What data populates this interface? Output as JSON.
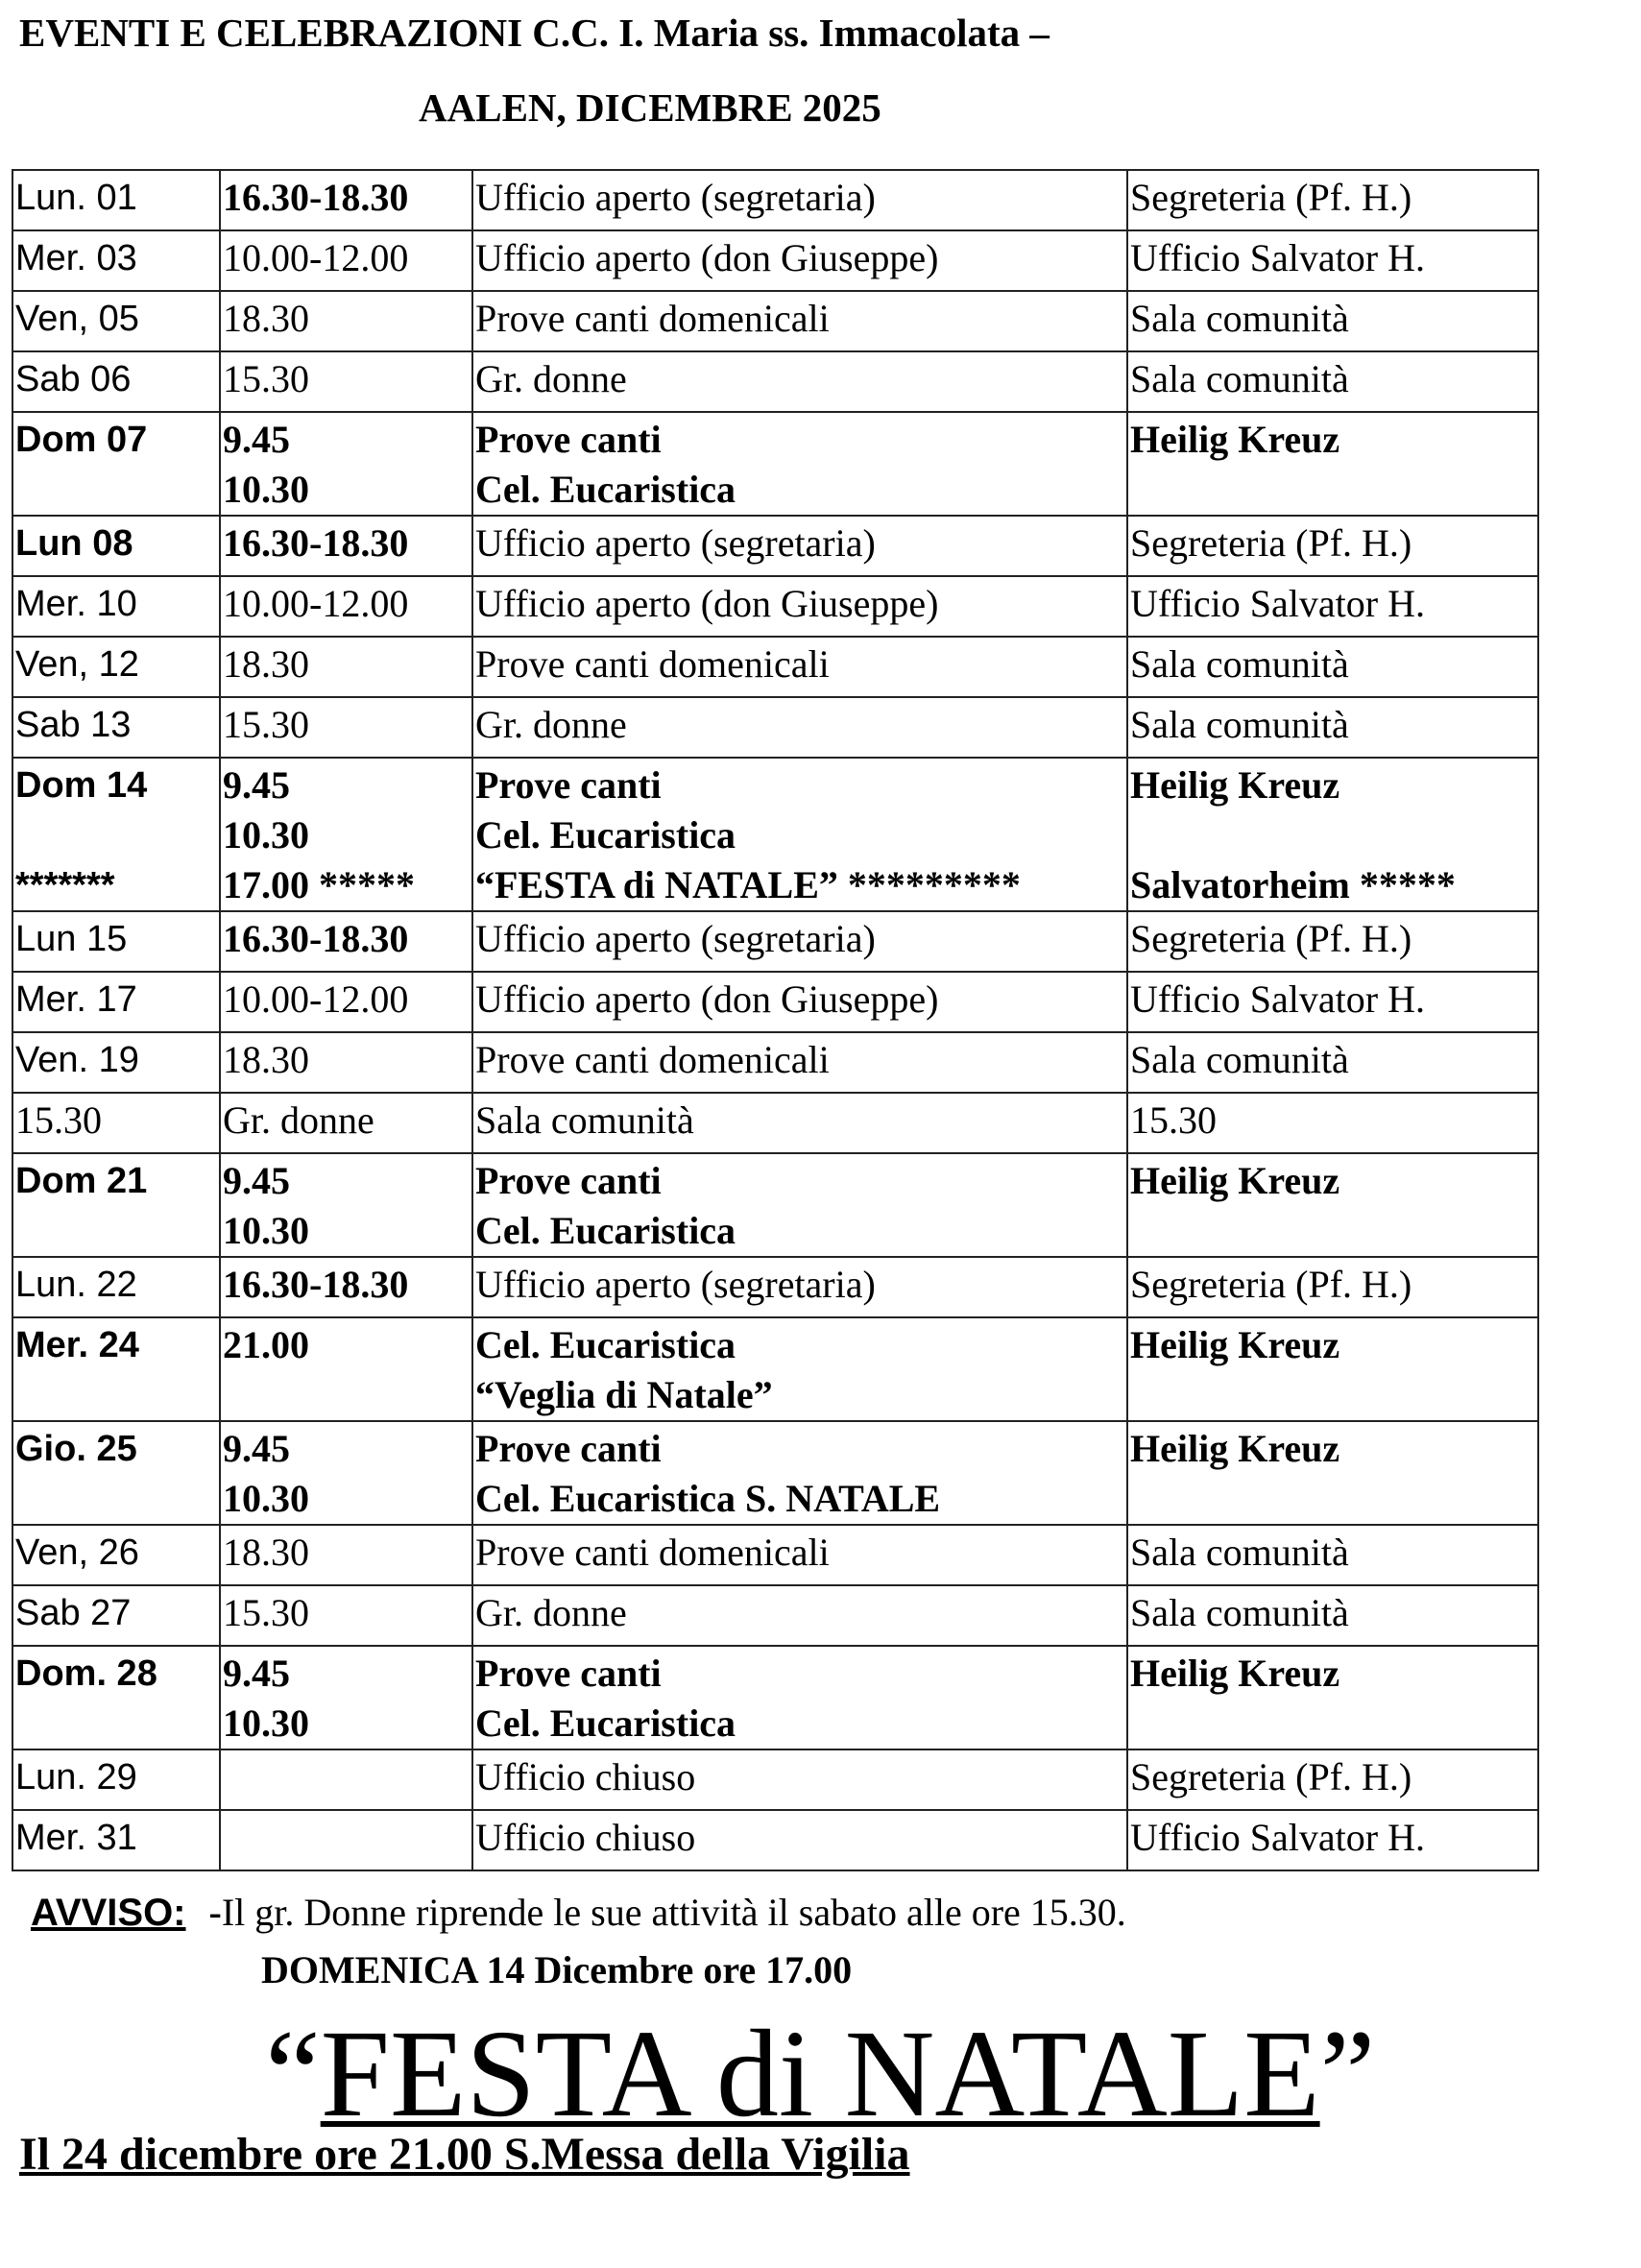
{
  "header": {
    "title_line1": "EVENTI E CELEBRAZIONI C.C. I. Maria ss. Immacolata –",
    "title_line2": "AALEN,  DICEMBRE  2025"
  },
  "schedule": [
    {
      "cells": [
        {
          "lines": [
            "Lun.  01"
          ],
          "bold": false
        },
        {
          "lines": [
            "16.30-18.30"
          ],
          "bold": true
        },
        {
          "lines": [
            "Ufficio aperto (segretaria)"
          ],
          "bold": false
        },
        {
          "lines": [
            "Segreteria (Pf. H.)"
          ],
          "bold": false
        }
      ]
    },
    {
      "cells": [
        {
          "lines": [
            "Mer. 03"
          ],
          "bold": false
        },
        {
          "lines": [
            "10.00-12.00"
          ],
          "bold": false
        },
        {
          "lines": [
            "Ufficio aperto (don Giuseppe)"
          ],
          "bold": false
        },
        {
          "lines": [
            "Ufficio Salvator H."
          ],
          "bold": false
        }
      ]
    },
    {
      "cells": [
        {
          "lines": [
            "Ven,  05"
          ],
          "bold": false
        },
        {
          "lines": [
            "18.30"
          ],
          "bold": false
        },
        {
          "lines": [
            "Prove canti domenicali"
          ],
          "bold": false
        },
        {
          "lines": [
            "Sala comunità"
          ],
          "bold": false
        }
      ]
    },
    {
      "cells": [
        {
          "lines": [
            "Sab  06"
          ],
          "bold": false
        },
        {
          "lines": [
            "15.30"
          ],
          "bold": false
        },
        {
          "lines": [
            "Gr. donne"
          ],
          "bold": false
        },
        {
          "lines": [
            "Sala comunità"
          ],
          "bold": false
        }
      ]
    },
    {
      "cells": [
        {
          "lines": [
            "Dom  07"
          ],
          "bold": true
        },
        {
          "lines": [
            "9.45",
            "10.30"
          ],
          "bold": true
        },
        {
          "lines": [
            "Prove canti",
            "Cel. Eucaristica"
          ],
          "bold": true
        },
        {
          "lines": [
            "Heilig Kreuz"
          ],
          "bold": true
        }
      ]
    },
    {
      "cells": [
        {
          "lines": [
            "Lun  08"
          ],
          "bold": true
        },
        {
          "lines": [
            "16.30-18.30"
          ],
          "bold": true
        },
        {
          "lines": [
            "Ufficio aperto (segretaria)"
          ],
          "bold": false
        },
        {
          "lines": [
            "Segreteria (Pf. H.)"
          ],
          "bold": false
        }
      ]
    },
    {
      "cells": [
        {
          "lines": [
            "Mer. 10"
          ],
          "bold": false
        },
        {
          "lines": [
            "10.00-12.00"
          ],
          "bold": false
        },
        {
          "lines": [
            "Ufficio aperto (don Giuseppe)"
          ],
          "bold": false
        },
        {
          "lines": [
            "Ufficio Salvator H."
          ],
          "bold": false
        }
      ]
    },
    {
      "cells": [
        {
          "lines": [
            "Ven,  12"
          ],
          "bold": false
        },
        {
          "lines": [
            "18.30"
          ],
          "bold": false
        },
        {
          "lines": [
            "Prove canti domenicali"
          ],
          "bold": false
        },
        {
          "lines": [
            "Sala comunità"
          ],
          "bold": false
        }
      ]
    },
    {
      "cells": [
        {
          "lines": [
            "Sab  13"
          ],
          "bold": false
        },
        {
          "lines": [
            "15.30"
          ],
          "bold": false
        },
        {
          "lines": [
            "Gr. donne"
          ],
          "bold": false
        },
        {
          "lines": [
            "Sala comunità"
          ],
          "bold": false
        }
      ]
    },
    {
      "cells": [
        {
          "lines": [
            "Dom  14",
            "",
            "*******"
          ],
          "bold": true
        },
        {
          "lines": [
            "9.45",
            "10.30",
            "17.00  *****"
          ],
          "bold": true
        },
        {
          "lines": [
            "Prove canti",
            "Cel. Eucaristica",
            "“FESTA di NATALE”  *********"
          ],
          "bold": true
        },
        {
          "lines": [
            "Heilig Kreuz",
            "",
            "Salvatorheim  *****"
          ],
          "bold": true
        }
      ]
    },
    {
      "cells": [
        {
          "lines": [
            "Lun  15"
          ],
          "bold": false
        },
        {
          "lines": [
            "16.30-18.30"
          ],
          "bold": true
        },
        {
          "lines": [
            "Ufficio aperto (segretaria)"
          ],
          "bold": false
        },
        {
          "lines": [
            "Segreteria (Pf. H.)"
          ],
          "bold": false
        }
      ]
    },
    {
      "cells": [
        {
          "lines": [
            "Mer. 17"
          ],
          "bold": false
        },
        {
          "lines": [
            "10.00-12.00"
          ],
          "bold": false
        },
        {
          "lines": [
            "Ufficio aperto (don Giuseppe)"
          ],
          "bold": false
        },
        {
          "lines": [
            "Ufficio Salvator H."
          ],
          "bold": false
        }
      ]
    },
    {
      "cells": [
        {
          "lines": [
            "Ven. 19"
          ],
          "bold": false
        },
        {
          "lines": [
            "18.30"
          ],
          "bold": false
        },
        {
          "lines": [
            "Prove canti domenicali"
          ],
          "bold": false
        },
        {
          "lines": [
            "Sala comunità"
          ],
          "bold": false
        }
      ]
    },
    {
      "cells": [
        {
          "lines": [
            "15.30"
          ],
          "bold": false,
          "serif": true
        },
        {
          "lines": [
            "Gr. donne"
          ],
          "bold": false
        },
        {
          "lines": [
            "Sala comunità"
          ],
          "bold": false
        },
        {
          "lines": [
            "15.30"
          ],
          "bold": false
        }
      ]
    },
    {
      "cells": [
        {
          "lines": [
            "Dom  21"
          ],
          "bold": true
        },
        {
          "lines": [
            "9.45",
            "10.30"
          ],
          "bold": true
        },
        {
          "lines": [
            "Prove canti",
            "Cel. Eucaristica"
          ],
          "bold": true
        },
        {
          "lines": [
            "Heilig Kreuz"
          ],
          "bold": true
        }
      ]
    },
    {
      "cells": [
        {
          "lines": [
            "Lun.  22"
          ],
          "bold": false
        },
        {
          "lines": [
            "16.30-18.30"
          ],
          "bold": true
        },
        {
          "lines": [
            "Ufficio aperto (segretaria)"
          ],
          "bold": false
        },
        {
          "lines": [
            "Segreteria (Pf. H.)"
          ],
          "bold": false
        }
      ]
    },
    {
      "cells": [
        {
          "lines": [
            "Mer. 24"
          ],
          "bold": true
        },
        {
          "lines": [
            "21.00"
          ],
          "bold": true
        },
        {
          "lines": [
            "Cel. Eucaristica",
            "“Veglia di Natale”"
          ],
          "bold": true
        },
        {
          "lines": [
            "Heilig Kreuz"
          ],
          "bold": true
        }
      ]
    },
    {
      "cells": [
        {
          "lines": [
            "Gio.  25"
          ],
          "bold": true
        },
        {
          "lines": [
            "9.45",
            "10.30"
          ],
          "bold": true
        },
        {
          "lines": [
            "Prove canti",
            "Cel. Eucaristica  S. NATALE"
          ],
          "bold": true
        },
        {
          "lines": [
            "Heilig Kreuz"
          ],
          "bold": true
        }
      ]
    },
    {
      "cells": [
        {
          "lines": [
            "Ven,  26"
          ],
          "bold": false
        },
        {
          "lines": [
            "18.30"
          ],
          "bold": false
        },
        {
          "lines": [
            "Prove canti domenicali"
          ],
          "bold": false
        },
        {
          "lines": [
            "Sala comunità"
          ],
          "bold": false
        }
      ]
    },
    {
      "cells": [
        {
          "lines": [
            "Sab  27"
          ],
          "bold": false
        },
        {
          "lines": [
            "15.30"
          ],
          "bold": false
        },
        {
          "lines": [
            "Gr. donne"
          ],
          "bold": false
        },
        {
          "lines": [
            "Sala comunità"
          ],
          "bold": false
        }
      ]
    },
    {
      "cells": [
        {
          "lines": [
            "Dom. 28"
          ],
          "bold": true
        },
        {
          "lines": [
            "9.45",
            "10.30"
          ],
          "bold": true
        },
        {
          "lines": [
            "Prove canti",
            "Cel. Eucaristica"
          ],
          "bold": true
        },
        {
          "lines": [
            "Heilig Kreuz"
          ],
          "bold": true
        }
      ]
    },
    {
      "cells": [
        {
          "lines": [
            "Lun.  29"
          ],
          "bold": false
        },
        {
          "lines": [
            ""
          ],
          "bold": false
        },
        {
          "lines": [
            "Ufficio chiuso"
          ],
          "bold": false
        },
        {
          "lines": [
            "Segreteria (Pf. H.)"
          ],
          "bold": false
        }
      ]
    },
    {
      "cells": [
        {
          "lines": [
            "Mer.  31"
          ],
          "bold": false
        },
        {
          "lines": [
            ""
          ],
          "bold": false
        },
        {
          "lines": [
            "Ufficio chiuso"
          ],
          "bold": false
        },
        {
          "lines": [
            "Ufficio Salvator H."
          ],
          "bold": false
        }
      ]
    }
  ],
  "notice": {
    "label": "AVVISO:",
    "dash": "-",
    "text": "Il gr. Donne  riprende le sue attività il sabato alle ore 15.30.",
    "domenica": "DOMENICA 14 Dicembre ore 17.00",
    "open_quote": "“",
    "festa": "FESTA di NATALE",
    "close_quote": "”",
    "vigilia": "Il 24 dicembre ore 21.00 S.Messa della Vigilia"
  }
}
